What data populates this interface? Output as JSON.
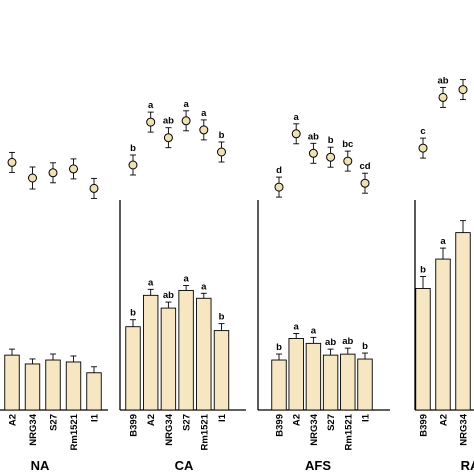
{
  "chart_data": {
    "type": "bar",
    "groups": [
      {
        "name": "NA",
        "categories": [
          "A2",
          "NRG34",
          "S27",
          "Rm1521",
          "I1"
        ],
        "bars": [
          {
            "value": 56,
            "err": 6,
            "letter": ""
          },
          {
            "value": 47,
            "err": 5,
            "letter": ""
          },
          {
            "value": 51,
            "err": 6,
            "letter": ""
          },
          {
            "value": 49,
            "err": 6,
            "letter": ""
          },
          {
            "value": 38,
            "err": 6,
            "letter": ""
          }
        ],
        "points": [
          {
            "value": 72,
            "err": 10,
            "letter": ""
          },
          {
            "value": 60,
            "err": 11,
            "letter": ""
          },
          {
            "value": 64,
            "err": 10,
            "letter": ""
          },
          {
            "value": 67,
            "err": 10,
            "letter": ""
          },
          {
            "value": 52,
            "err": 10,
            "letter": ""
          }
        ]
      },
      {
        "name": "CA",
        "categories": [
          "B399",
          "A2",
          "NRG34",
          "S27",
          "Rm1521",
          "I1"
        ],
        "bars": [
          {
            "value": 85,
            "err": 7,
            "letter": "b"
          },
          {
            "value": 117,
            "err": 6,
            "letter": "a"
          },
          {
            "value": 104,
            "err": 6,
            "letter": "ab"
          },
          {
            "value": 122,
            "err": 5,
            "letter": "a"
          },
          {
            "value": 114,
            "err": 5,
            "letter": "a"
          },
          {
            "value": 81,
            "err": 7,
            "letter": "b"
          }
        ],
        "points": [
          {
            "value": 70,
            "err": 10,
            "letter": "b"
          },
          {
            "value": 103,
            "err": 10,
            "letter": "a"
          },
          {
            "value": 91,
            "err": 10,
            "letter": "ab"
          },
          {
            "value": 104,
            "err": 10,
            "letter": "a"
          },
          {
            "value": 97,
            "err": 10,
            "letter": "a"
          },
          {
            "value": 80,
            "err": 10,
            "letter": "b"
          }
        ]
      },
      {
        "name": "AFS",
        "categories": [
          "B399",
          "A2",
          "NRG34",
          "S27",
          "Rm1521",
          "I1"
        ],
        "bars": [
          {
            "value": 51,
            "err": 6,
            "letter": "b"
          },
          {
            "value": 73,
            "err": 5,
            "letter": "a"
          },
          {
            "value": 68,
            "err": 6,
            "letter": "a"
          },
          {
            "value": 56,
            "err": 6,
            "letter": "ab"
          },
          {
            "value": 57,
            "err": 6,
            "letter": "ab"
          },
          {
            "value": 52,
            "err": 6,
            "letter": "b"
          }
        ],
        "points": [
          {
            "value": 53,
            "err": 10,
            "letter": "d"
          },
          {
            "value": 94,
            "err": 10,
            "letter": "a"
          },
          {
            "value": 79,
            "err": 10,
            "letter": "ab"
          },
          {
            "value": 76,
            "err": 10,
            "letter": "b"
          },
          {
            "value": 73,
            "err": 10,
            "letter": "bc"
          },
          {
            "value": 56,
            "err": 10,
            "letter": "cd"
          }
        ]
      },
      {
        "name": "RA",
        "categories": [
          "B399",
          "A2",
          "NRG34"
        ],
        "bars": [
          {
            "value": 124,
            "err": 12,
            "letter": "b"
          },
          {
            "value": 154,
            "err": 11,
            "letter": "a"
          },
          {
            "value": 181,
            "err": 12,
            "letter": ""
          }
        ],
        "points": [
          {
            "value": 83,
            "err": 10,
            "letter": "c"
          },
          {
            "value": 122,
            "err": 10,
            "letter": "ab"
          },
          {
            "value": 128,
            "err": 10,
            "letter": ""
          }
        ]
      }
    ],
    "series": [
      {
        "name": "",
        "kind": "bar"
      },
      {
        "name": "",
        "kind": "point"
      }
    ],
    "grid": false,
    "colors": {
      "bar_fill": "#f6e6c2",
      "point_fill": "#efe1b3",
      "stroke": "#000000"
    }
  }
}
